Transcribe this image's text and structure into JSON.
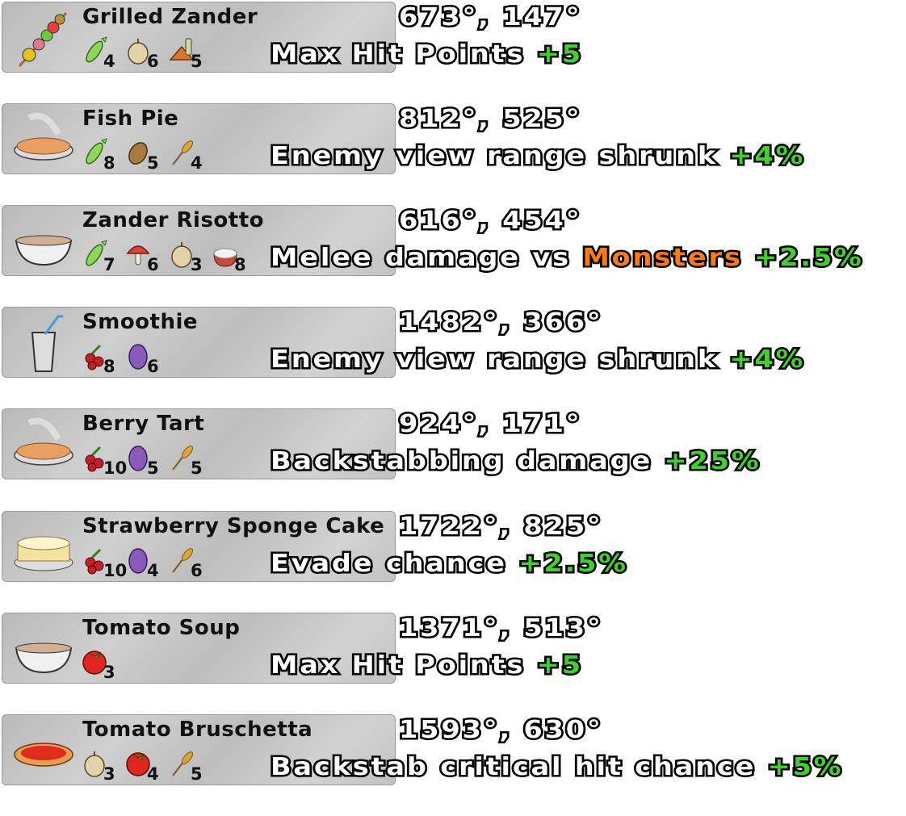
{
  "colors": {
    "bonus": "#3fd22a",
    "highlight": "#ff7a10",
    "card": "#c4c4c4"
  },
  "recipes": [
    {
      "name": "Grilled Zander",
      "dish_icon": "skewer",
      "ingredients": [
        {
          "icon": "fish",
          "qty": "4"
        },
        {
          "icon": "onion",
          "qty": "6"
        },
        {
          "icon": "spice",
          "qty": "5"
        }
      ],
      "coords": "673°, 147°",
      "effect": {
        "text": "Max Hit Points",
        "target": "",
        "bonus": "+5"
      }
    },
    {
      "name": "Fish Pie",
      "dish_icon": "pie",
      "ingredients": [
        {
          "icon": "fish",
          "qty": "8"
        },
        {
          "icon": "potato",
          "qty": "5"
        },
        {
          "icon": "wheat",
          "qty": "4"
        }
      ],
      "coords": "812°, 525°",
      "effect": {
        "text": "Enemy view range shrunk",
        "target": "",
        "bonus": "+4%"
      }
    },
    {
      "name": "Zander Risotto",
      "dish_icon": "bowl",
      "ingredients": [
        {
          "icon": "fish",
          "qty": "7"
        },
        {
          "icon": "mushroom",
          "qty": "6"
        },
        {
          "icon": "onion",
          "qty": "3"
        },
        {
          "icon": "rice",
          "qty": "8"
        }
      ],
      "coords": "616°, 454°",
      "effect": {
        "text": "Melee damage vs",
        "target": "Monsters",
        "bonus": "+2.5%"
      }
    },
    {
      "name": "Smoothie",
      "dish_icon": "cup",
      "ingredients": [
        {
          "icon": "berry",
          "qty": "8"
        },
        {
          "icon": "egg",
          "qty": "6"
        }
      ],
      "coords": "1482°, 366°",
      "effect": {
        "text": "Enemy view range shrunk",
        "target": "",
        "bonus": "+4%"
      }
    },
    {
      "name": "Berry Tart",
      "dish_icon": "pie",
      "ingredients": [
        {
          "icon": "berry",
          "qty": "10"
        },
        {
          "icon": "egg",
          "qty": "5"
        },
        {
          "icon": "wheat",
          "qty": "5"
        }
      ],
      "coords": "924°, 171°",
      "effect": {
        "text": "Backstabbing damage",
        "target": "",
        "bonus": "+25%"
      }
    },
    {
      "name": "Strawberry Sponge Cake",
      "dish_icon": "cake",
      "ingredients": [
        {
          "icon": "berry",
          "qty": "10"
        },
        {
          "icon": "egg",
          "qty": "4"
        },
        {
          "icon": "wheat",
          "qty": "6"
        }
      ],
      "coords": "1722°, 825°",
      "effect": {
        "text": "Evade chance",
        "target": "",
        "bonus": "+2.5%"
      }
    },
    {
      "name": "Tomato Soup",
      "dish_icon": "bowl",
      "ingredients": [
        {
          "icon": "tomato",
          "qty": "3"
        }
      ],
      "coords": "1371°, 513°",
      "effect": {
        "text": "Max Hit Points",
        "target": "",
        "bonus": "+5"
      }
    },
    {
      "name": "Tomato Bruschetta",
      "dish_icon": "bruschetta",
      "ingredients": [
        {
          "icon": "onion",
          "qty": "3"
        },
        {
          "icon": "tomato",
          "qty": "4"
        },
        {
          "icon": "wheat",
          "qty": "5"
        }
      ],
      "coords": "1593°, 630°",
      "effect": {
        "text": "Backstab critical hit chance",
        "target": "",
        "bonus": "+5%"
      }
    }
  ]
}
